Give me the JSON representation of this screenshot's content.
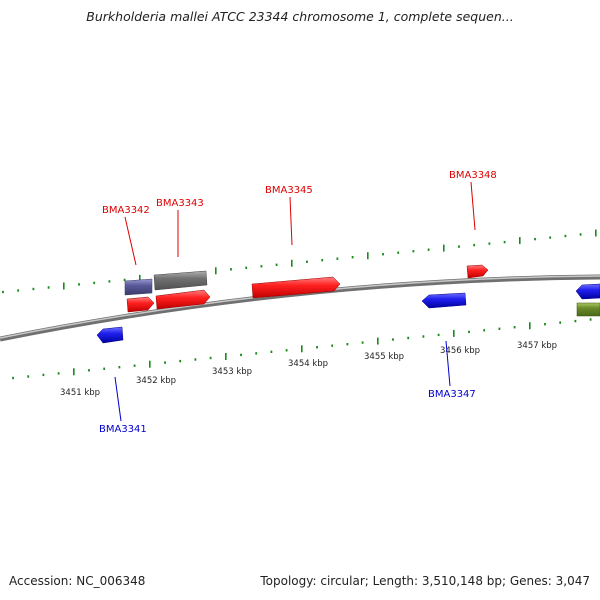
{
  "title": "Burkholderia mallei ATCC 23344 chromosome 1, complete sequen...",
  "footer": {
    "accession": "Accession: NC_006348",
    "summary": "Topology: circular; Length: 3,510,148 bp; Genes: 3,047"
  },
  "colors": {
    "forward": "#ee1111",
    "reverse": "#1818dd",
    "tick": "#1a8a1a",
    "backbone": "#8a8a8a",
    "gray_feature": "#6a6a6a",
    "purple_feature": "#5a5a9a",
    "olive_feature": "#6a8a2a"
  },
  "tick_labels": [
    "3451 kbp",
    "3452 kbp",
    "3453 kbp",
    "3454 kbp",
    "3455 kbp",
    "3456 kbp",
    "3457 kbp"
  ],
  "genes": [
    {
      "name": "BMA3341",
      "strand": "reverse"
    },
    {
      "name": "BMA3342",
      "strand": "forward"
    },
    {
      "name": "BMA3343",
      "strand": "forward"
    },
    {
      "name": "BMA3345",
      "strand": "forward"
    },
    {
      "name": "BMA3347",
      "strand": "reverse"
    },
    {
      "name": "BMA3348",
      "strand": "forward"
    }
  ]
}
